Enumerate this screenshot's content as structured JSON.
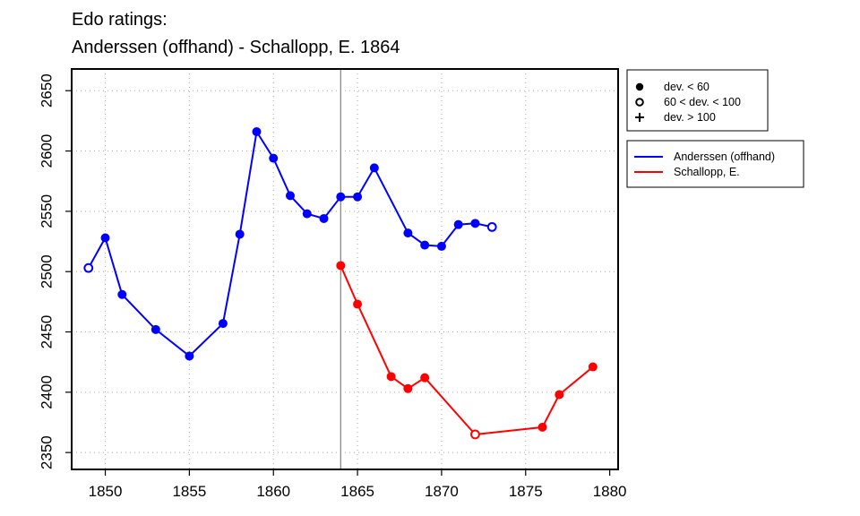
{
  "chart_data": {
    "type": "line",
    "title_line1": "Edo ratings:",
    "title_line2": "Anderssen (offhand) - Schallopp, E. 1864",
    "xlabel": "",
    "ylabel": "",
    "xlim": [
      1848,
      1880.5
    ],
    "ylim": [
      2336,
      2668
    ],
    "x_ticks": [
      1850,
      1855,
      1860,
      1865,
      1870,
      1875,
      1880
    ],
    "y_ticks": [
      2350,
      2400,
      2450,
      2500,
      2550,
      2600,
      2650
    ],
    "grid": true,
    "vline_x": 1864,
    "series": [
      {
        "name": "Anderssen (offhand)",
        "color": "#0000ff",
        "points": [
          {
            "x": 1849,
            "y": 2503,
            "marker": "open"
          },
          {
            "x": 1850,
            "y": 2528,
            "marker": "filled"
          },
          {
            "x": 1851,
            "y": 2481,
            "marker": "filled"
          },
          {
            "x": 1853,
            "y": 2452,
            "marker": "filled"
          },
          {
            "x": 1855,
            "y": 2430,
            "marker": "filled"
          },
          {
            "x": 1857,
            "y": 2457,
            "marker": "filled"
          },
          {
            "x": 1858,
            "y": 2531,
            "marker": "filled"
          },
          {
            "x": 1859,
            "y": 2616,
            "marker": "filled"
          },
          {
            "x": 1860,
            "y": 2594,
            "marker": "filled"
          },
          {
            "x": 1861,
            "y": 2563,
            "marker": "filled"
          },
          {
            "x": 1862,
            "y": 2548,
            "marker": "filled"
          },
          {
            "x": 1863,
            "y": 2544,
            "marker": "filled"
          },
          {
            "x": 1864,
            "y": 2562,
            "marker": "filled"
          },
          {
            "x": 1865,
            "y": 2562,
            "marker": "filled"
          },
          {
            "x": 1866,
            "y": 2586,
            "marker": "filled"
          },
          {
            "x": 1868,
            "y": 2532,
            "marker": "filled"
          },
          {
            "x": 1869,
            "y": 2522,
            "marker": "filled"
          },
          {
            "x": 1870,
            "y": 2521,
            "marker": "filled"
          },
          {
            "x": 1871,
            "y": 2539,
            "marker": "filled"
          },
          {
            "x": 1872,
            "y": 2540,
            "marker": "filled"
          },
          {
            "x": 1873,
            "y": 2537,
            "marker": "open"
          }
        ]
      },
      {
        "name": "Schallopp, E.",
        "color": "#ff0000",
        "points": [
          {
            "x": 1864,
            "y": 2505,
            "marker": "filled"
          },
          {
            "x": 1865,
            "y": 2473,
            "marker": "filled"
          },
          {
            "x": 1867,
            "y": 2413,
            "marker": "filled"
          },
          {
            "x": 1868,
            "y": 2403,
            "marker": "filled"
          },
          {
            "x": 1869,
            "y": 2412,
            "marker": "filled"
          },
          {
            "x": 1872,
            "y": 2365,
            "marker": "open"
          },
          {
            "x": 1876,
            "y": 2371,
            "marker": "filled"
          },
          {
            "x": 1877,
            "y": 2398,
            "marker": "filled"
          },
          {
            "x": 1879,
            "y": 2421,
            "marker": "filled"
          }
        ]
      }
    ],
    "marker_legend": {
      "placement": "top-right, outside plot",
      "entries": [
        {
          "symbol": "filled",
          "label": "dev. < 60"
        },
        {
          "symbol": "open",
          "label": "60 < dev. < 100"
        },
        {
          "symbol": "plus",
          "label": "dev. > 100"
        }
      ]
    },
    "series_legend": {
      "placement": "right, outside plot"
    }
  }
}
